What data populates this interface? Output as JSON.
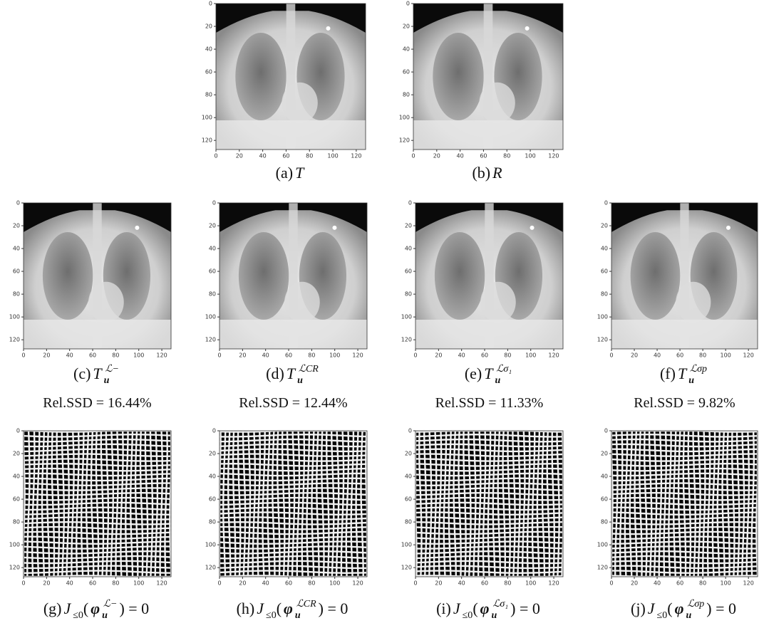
{
  "axis": {
    "ticks": [
      0,
      20,
      40,
      60,
      80,
      100,
      120
    ],
    "range": [
      0,
      128
    ]
  },
  "panels": [
    {
      "kind": "xray",
      "caption": [
        {
          "text": "(a)"
        },
        {
          "text": "T",
          "style": "italic"
        }
      ]
    },
    {
      "kind": "xray",
      "caption": [
        {
          "text": "(b)"
        },
        {
          "text": "R",
          "style": "italic"
        }
      ]
    },
    {
      "kind": "xray",
      "caption": [
        {
          "text": "(c)"
        },
        {
          "text": "T",
          "style": "italic"
        },
        {
          "text": "u",
          "style": "sub-bold"
        },
        {
          "text": "ℒ−",
          "style": "sup"
        }
      ],
      "rel_ssd": "Rel.SSD = 16.44%"
    },
    {
      "kind": "xray",
      "caption": [
        {
          "text": "(d)"
        },
        {
          "text": "T",
          "style": "italic"
        },
        {
          "text": "u",
          "style": "sub-bold"
        },
        {
          "text": "ℒCR",
          "style": "sup"
        }
      ],
      "rel_ssd": "Rel.SSD = 12.44%"
    },
    {
      "kind": "xray",
      "caption": [
        {
          "text": "(e)"
        },
        {
          "text": "T",
          "style": "italic"
        },
        {
          "text": "u",
          "style": "sub-bold"
        },
        {
          "text": "ℒσ₁",
          "style": "sup"
        }
      ],
      "rel_ssd": "Rel.SSD = 11.33%"
    },
    {
      "kind": "xray",
      "caption": [
        {
          "text": "(f)"
        },
        {
          "text": "T",
          "style": "italic"
        },
        {
          "text": "u",
          "style": "sub-bold"
        },
        {
          "text": "ℒσp",
          "style": "sup"
        }
      ],
      "rel_ssd": "Rel.SSD = 9.82%"
    },
    {
      "kind": "grid",
      "caption": [
        {
          "text": "(g)"
        },
        {
          "text": "J",
          "style": "italic"
        },
        {
          "text": "≤0",
          "style": "sub"
        },
        {
          "text": "("
        },
        {
          "text": "φ",
          "style": "bold-italic"
        },
        {
          "text": "u",
          "style": "sub-bold"
        },
        {
          "text": "ℒ−",
          "style": "sup"
        },
        {
          "text": ") = 0"
        }
      ]
    },
    {
      "kind": "grid",
      "caption": [
        {
          "text": "(h)"
        },
        {
          "text": "J",
          "style": "italic"
        },
        {
          "text": "≤0",
          "style": "sub"
        },
        {
          "text": "("
        },
        {
          "text": "φ",
          "style": "bold-italic"
        },
        {
          "text": "u",
          "style": "sub-bold"
        },
        {
          "text": "ℒCR",
          "style": "sup"
        },
        {
          "text": ") = 0"
        }
      ]
    },
    {
      "kind": "grid",
      "caption": [
        {
          "text": "(i)"
        },
        {
          "text": "J",
          "style": "italic"
        },
        {
          "text": "≤0",
          "style": "sub"
        },
        {
          "text": "("
        },
        {
          "text": "φ",
          "style": "bold-italic"
        },
        {
          "text": "u",
          "style": "sub-bold"
        },
        {
          "text": "ℒσ₁",
          "style": "sup"
        },
        {
          "text": ") = 0"
        }
      ]
    },
    {
      "kind": "grid",
      "caption": [
        {
          "text": "(j)"
        },
        {
          "text": "J",
          "style": "italic"
        },
        {
          "text": "≤0",
          "style": "sub"
        },
        {
          "text": "("
        },
        {
          "text": "φ",
          "style": "bold-italic"
        },
        {
          "text": "u",
          "style": "sub-bold"
        },
        {
          "text": "ℒσp",
          "style": "sup"
        },
        {
          "text": ") = 0"
        }
      ]
    }
  ]
}
